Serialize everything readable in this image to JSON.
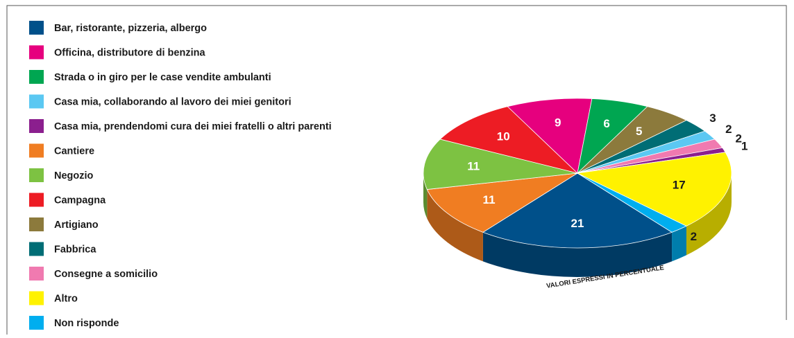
{
  "chart_data": {
    "type": "pie",
    "categories": [
      "Bar, ristorante, pizzeria, albergo",
      "Officina, distributore di benzina",
      "Strada o in giro per le case vendite ambulanti",
      "Casa mia, collaborando al lavoro dei miei genitori",
      "Casa mia, prendendomi cura dei miei fratelli o altri parenti",
      "Cantiere",
      "Negozio",
      "Campagna",
      "Artigiano",
      "Fabbrica",
      "Consegne a somicilio",
      "Altro",
      "Non risponde"
    ],
    "values": [
      21,
      9,
      6,
      2,
      1,
      11,
      11,
      10,
      5,
      3,
      2,
      17,
      2
    ],
    "colors": [
      "#00508a",
      "#e6007e",
      "#00a651",
      "#5bc8f2",
      "#8b1f8e",
      "#f07d22",
      "#7dc242",
      "#ed1c24",
      "#8c7a3c",
      "#006d75",
      "#f07ab0",
      "#fff200",
      "#00aeef"
    ],
    "annotation": "VALORI ESPRESSI IN PERCENTUALE"
  }
}
